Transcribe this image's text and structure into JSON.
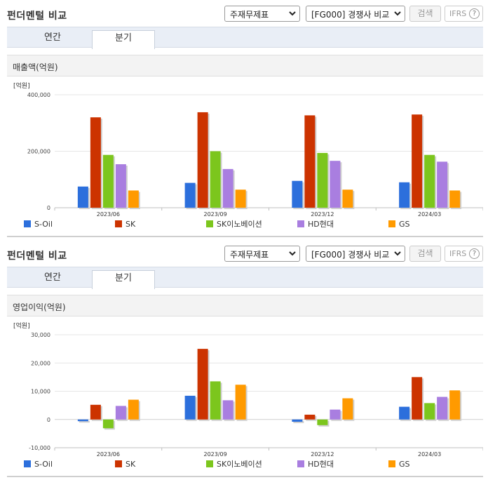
{
  "sections": [
    {
      "title": "펀더멘털 비교",
      "select_statement": "주재무제표",
      "select_compare": "[FG000] 경쟁사 비교",
      "search_label": "검색",
      "ifrs_label": "IFRS",
      "help_label": "?",
      "tab_annual": "연간",
      "tab_quarter": "분기",
      "metric_title": "매출액(억원)"
    },
    {
      "title": "펀더멘털 비교",
      "select_statement": "주재무제표",
      "select_compare": "[FG000] 경쟁사 비교",
      "search_label": "검색",
      "ifrs_label": "IFRS",
      "help_label": "?",
      "tab_annual": "연간",
      "tab_quarter": "분기",
      "metric_title": "영업이익(억원)"
    }
  ],
  "chart_data": [
    {
      "type": "bar",
      "unit_label": "[억원]",
      "categories": [
        "2023/06",
        "2023/09",
        "2023/12",
        "2024/03"
      ],
      "ylim": [
        0,
        400000
      ],
      "yticks": [
        0,
        200000,
        400000
      ],
      "ytick_labels": [
        "0",
        "200,000",
        "400,000"
      ],
      "grid": true,
      "legend_position": "bottom",
      "series": [
        {
          "name": "S-Oil",
          "color": "#2c6fdc",
          "values": [
            75000,
            88000,
            95000,
            90000
          ]
        },
        {
          "name": "SK",
          "color": "#cc3300",
          "values": [
            320000,
            338000,
            327000,
            330000
          ]
        },
        {
          "name": "SK이노베이션",
          "color": "#7cc61d",
          "values": [
            187000,
            200000,
            194000,
            187000
          ]
        },
        {
          "name": "HD현대",
          "color": "#a97ee0",
          "values": [
            154000,
            137000,
            166000,
            163000
          ]
        },
        {
          "name": "GS",
          "color": "#ff9a00",
          "values": [
            61000,
            64000,
            64000,
            61000
          ]
        }
      ]
    },
    {
      "type": "bar",
      "unit_label": "[억원]",
      "categories": [
        "2023/06",
        "2023/09",
        "2023/12",
        "2024/03"
      ],
      "ylim": [
        -10000,
        30000
      ],
      "yticks": [
        -10000,
        0,
        10000,
        20000,
        30000
      ],
      "ytick_labels": [
        "-10,000",
        "0",
        "10,000",
        "20,000",
        "30,000"
      ],
      "grid": true,
      "legend_position": "bottom",
      "series": [
        {
          "name": "S-Oil",
          "color": "#2c6fdc",
          "values": [
            -600,
            8400,
            -800,
            4500
          ]
        },
        {
          "name": "SK",
          "color": "#cc3300",
          "values": [
            5200,
            25000,
            1700,
            15000
          ]
        },
        {
          "name": "SK이노베이션",
          "color": "#7cc61d",
          "values": [
            -3100,
            13500,
            -2000,
            5800
          ]
        },
        {
          "name": "HD현대",
          "color": "#a97ee0",
          "values": [
            4800,
            6800,
            3500,
            8000
          ]
        },
        {
          "name": "GS",
          "color": "#ff9a00",
          "values": [
            7000,
            12300,
            7500,
            10300
          ]
        }
      ]
    }
  ]
}
